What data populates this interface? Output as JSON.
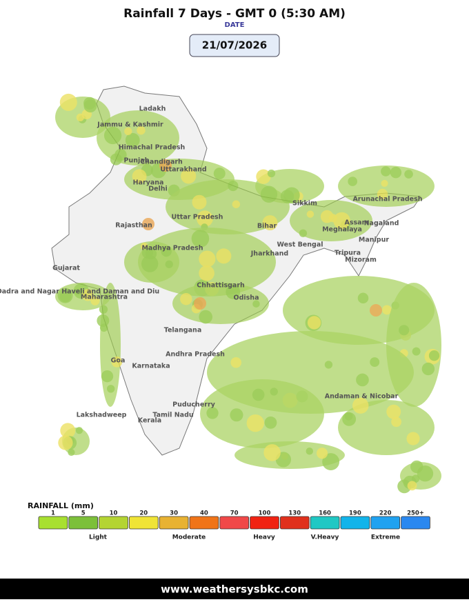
{
  "header": {
    "title": "Rainfall 7 Days - GMT 0 (5:30 AM)",
    "date_label": "DATE",
    "date": "21/07/2026"
  },
  "map": {
    "regions": [
      "Ladakh",
      "Jammu & Kashmir",
      "Himachal Pradesh",
      "Punjab",
      "Chandigarh",
      "Uttarakhand",
      "Haryana",
      "Delhi",
      "Sikkim",
      "Arunachal Pradesh",
      "Uttar Pradesh",
      "Rajasthan",
      "Bihar",
      "Assam",
      "Nagaland",
      "Meghalaya",
      "Manipur",
      "West Bengal",
      "Madhya Pradesh",
      "Jharkhand",
      "Tripura",
      "Mizoram",
      "Gujarat",
      "Dadra and Nagar Haveli and Daman and Diu",
      "Maharashtra",
      "Chhattisgarh",
      "Odisha",
      "Telangana",
      "Andhra Pradesh",
      "Goa",
      "Karnataka",
      "Andaman & Nicobar",
      "Puducherry",
      "Lakshadweep",
      "Tamil Nadu",
      "Kerala"
    ]
  },
  "legend": {
    "title": "RAINFALL (mm)",
    "steps": [
      {
        "label": "1",
        "color": "#a8e030"
      },
      {
        "label": "5",
        "color": "#7cc03a"
      },
      {
        "label": "10",
        "color": "#b4d432"
      },
      {
        "label": "20",
        "color": "#f0e436"
      },
      {
        "label": "30",
        "color": "#e8b232"
      },
      {
        "label": "40",
        "color": "#f07418"
      },
      {
        "label": "70",
        "color": "#f04848"
      },
      {
        "label": "100",
        "color": "#f02212"
      },
      {
        "label": "130",
        "color": "#e0301c"
      },
      {
        "label": "160",
        "color": "#20c8c4"
      },
      {
        "label": "190",
        "color": "#12b4ea"
      },
      {
        "label": "220",
        "color": "#20a2f0"
      },
      {
        "label": "250+",
        "color": "#2a88f0"
      }
    ],
    "classes": [
      "Light",
      "Moderate",
      "Heavy",
      "V.Heavy",
      "Extreme"
    ]
  },
  "footer": {
    "url": "www.weathersysbkc.com"
  }
}
